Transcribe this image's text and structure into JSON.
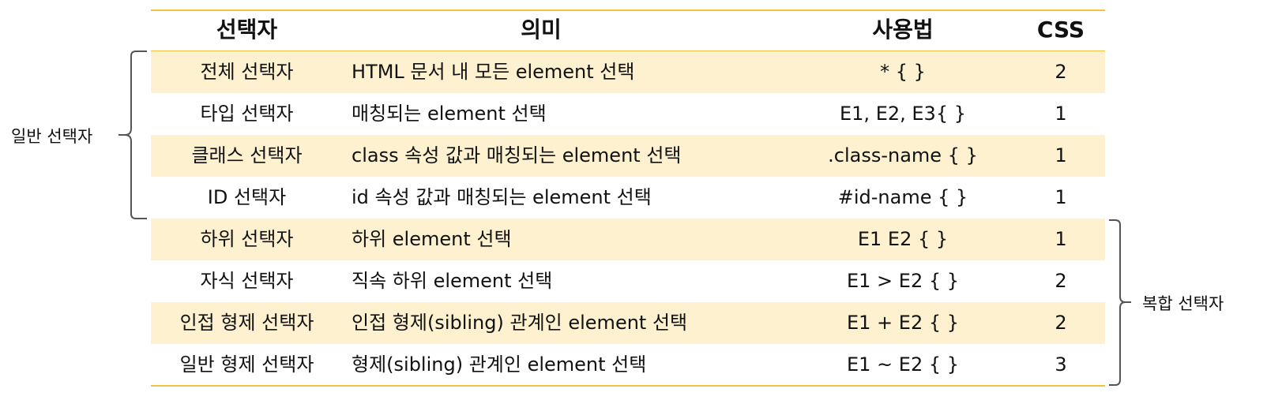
{
  "colors": {
    "accent": "#f4c142",
    "band": "#fdf1cf",
    "bracket": "#555555"
  },
  "table": {
    "headers": [
      "선택자",
      "의미",
      "사용법",
      "CSS"
    ],
    "rows": [
      {
        "name": "전체 선택자",
        "meaning": "HTML 문서 내 모든 element 선택",
        "usage": "* { }",
        "css": "2"
      },
      {
        "name": "타입 선택자",
        "meaning": "매칭되는 element 선택",
        "usage": "E1, E2, E3{ }",
        "css": "1"
      },
      {
        "name": "클래스 선택자",
        "meaning": "class 속성 값과 매칭되는 element 선택",
        "usage": ".class-name { }",
        "css": "1"
      },
      {
        "name": "ID 선택자",
        "meaning": "id 속성 값과 매칭되는 element 선택",
        "usage": "#id-name { }",
        "css": "1"
      },
      {
        "name": "하위 선택자",
        "meaning": "하위 element 선택",
        "usage": "E1 E2 { }",
        "css": "1"
      },
      {
        "name": "자식 선택자",
        "meaning": "직속 하위 element 선택",
        "usage": "E1 > E2 { }",
        "css": "2"
      },
      {
        "name": "인접 형제 선택자",
        "meaning": "인접 형제(sibling) 관계인 element 선택",
        "usage": "E1 + E2 { }",
        "css": "2"
      },
      {
        "name": "일반 형제 선택자",
        "meaning": "형제(sibling) 관계인 element 선택",
        "usage": "E1 ~ E2 { }",
        "css": "3"
      }
    ]
  },
  "groups": {
    "general": "일반 선택자",
    "compound": "복합 선택자"
  }
}
